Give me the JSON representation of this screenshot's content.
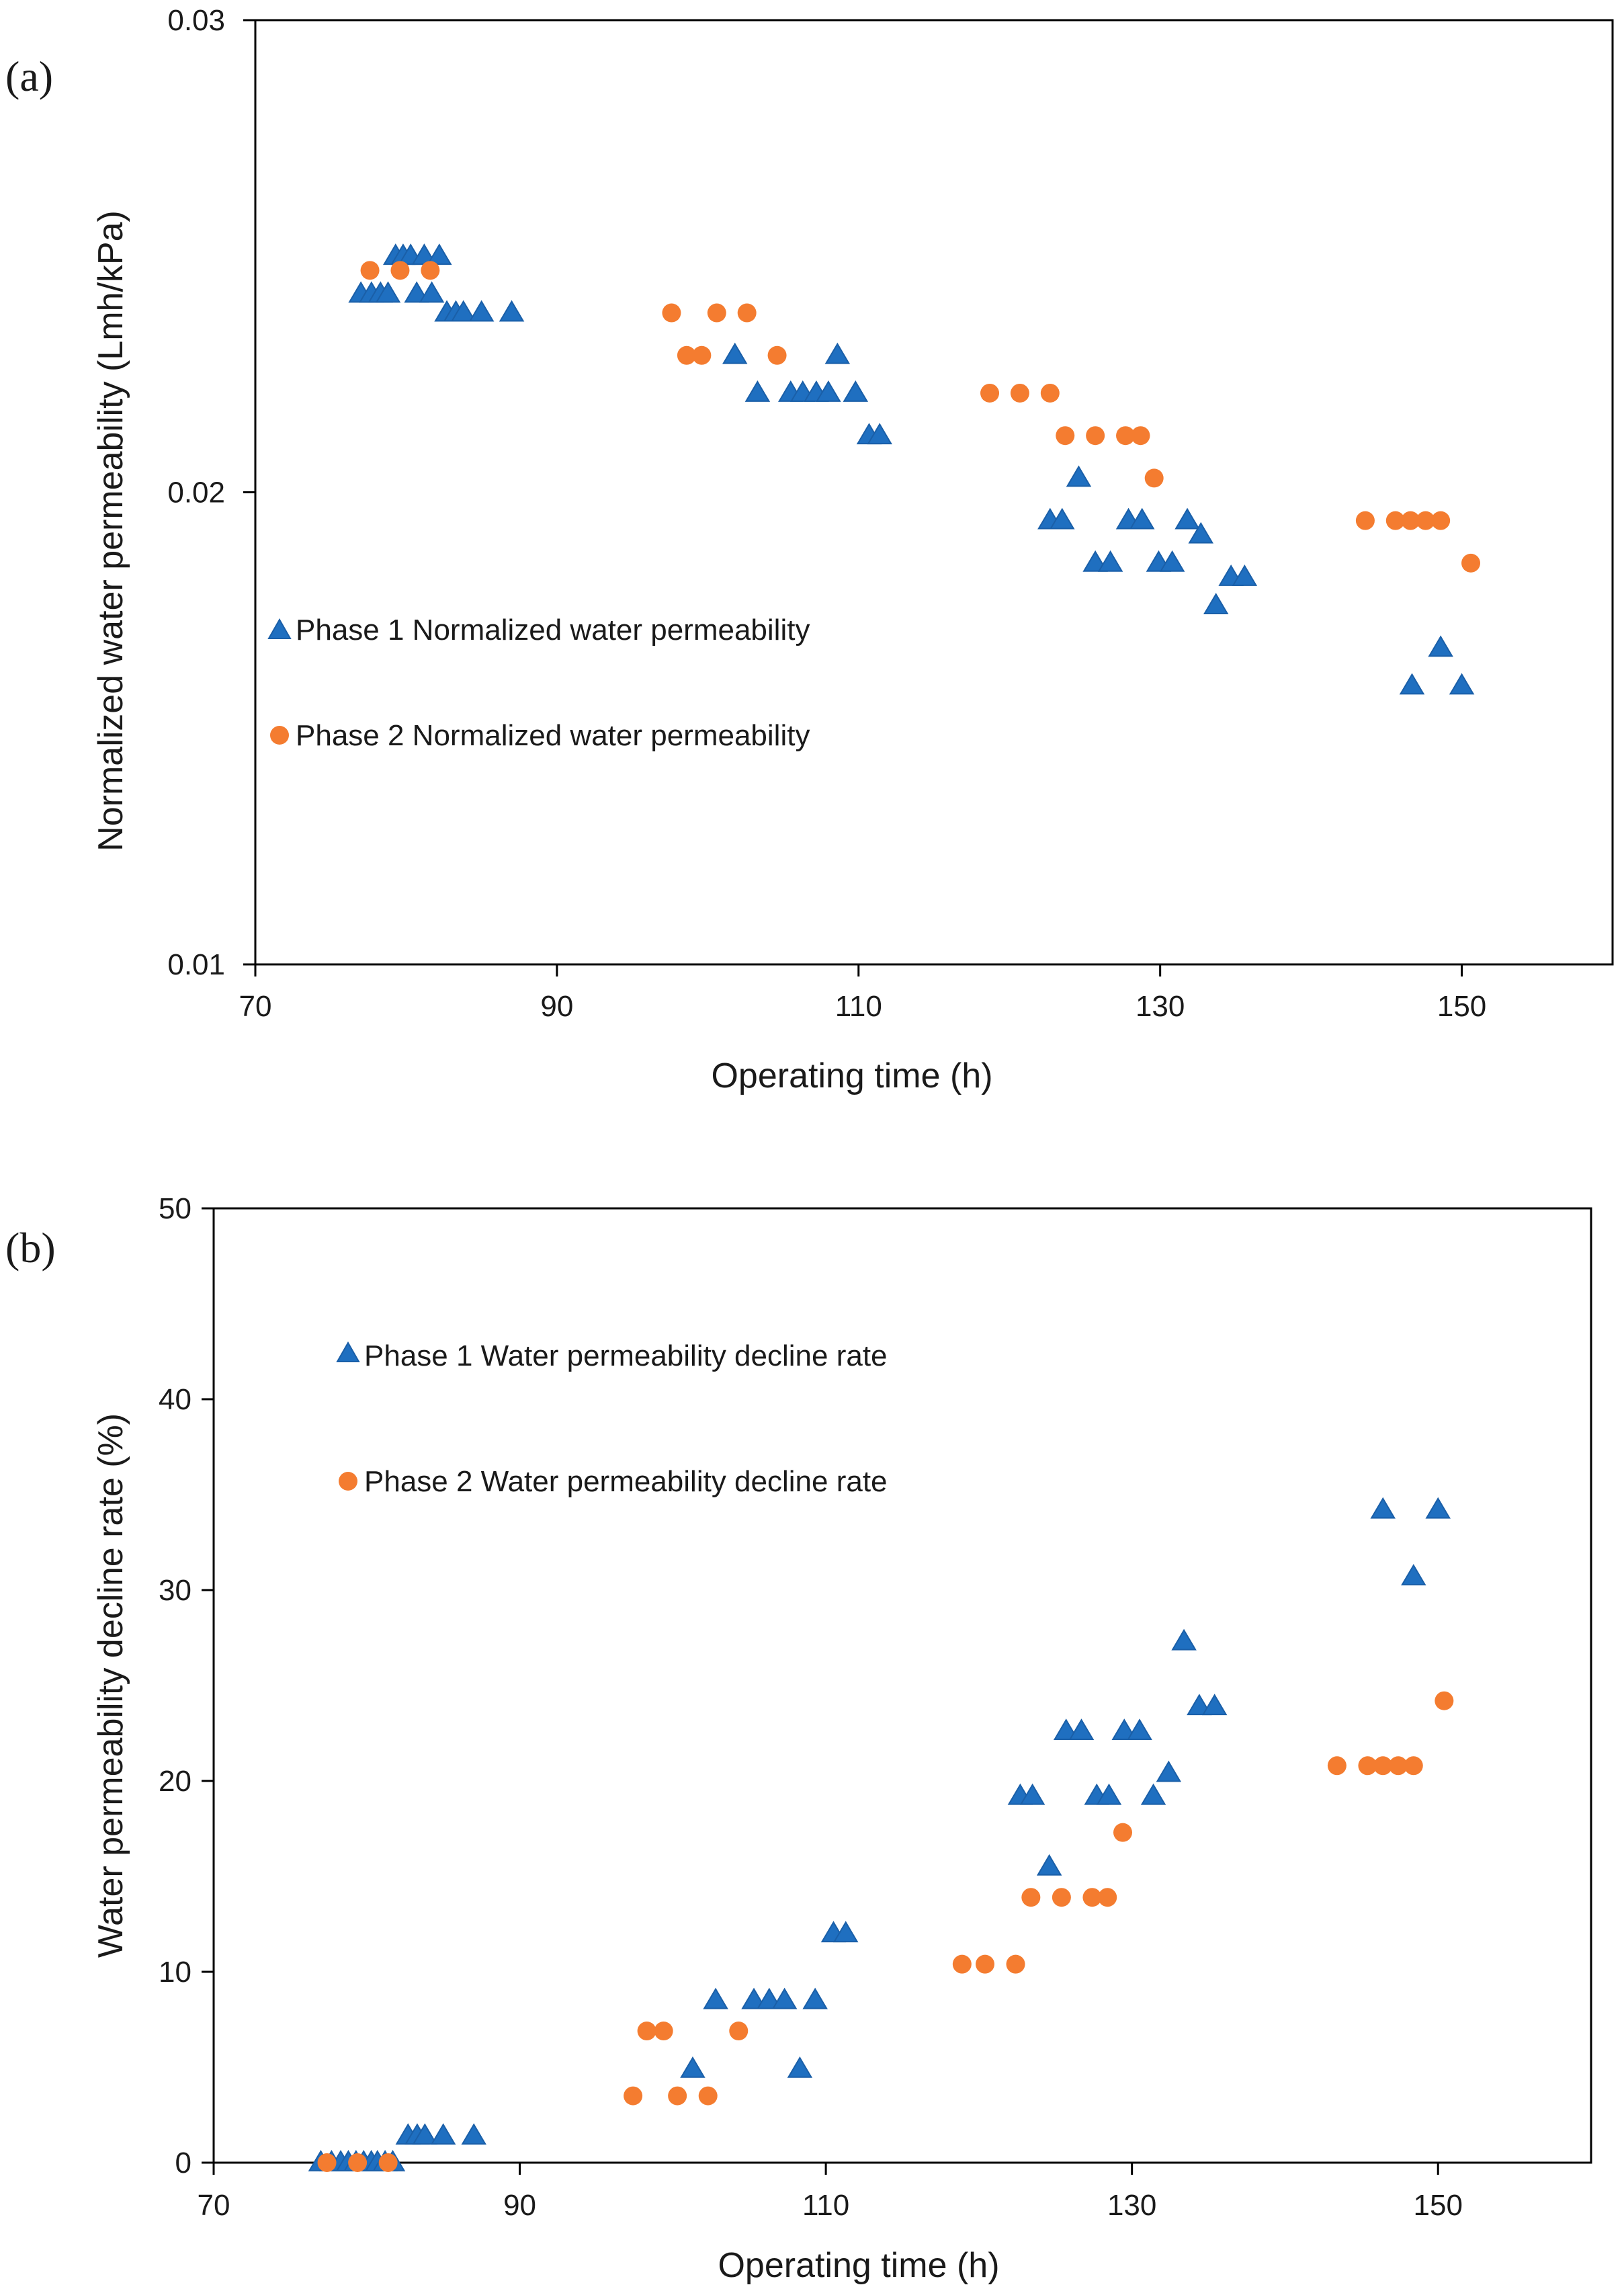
{
  "colors": {
    "phase1": "#1f6fc0",
    "phase1_stroke": "#1a5fa8",
    "phase2": "#f47c30",
    "axis": "#000000"
  },
  "chart_data": [
    {
      "type": "scatter",
      "panel_label": "(a)",
      "xlabel": "Operating time (h)",
      "ylabel": "Normalized water permeability  (Lmh/kPa)",
      "xlim": [
        70,
        160
      ],
      "ylim": [
        0.01,
        0.03
      ],
      "xticks": [
        70,
        90,
        110,
        130,
        150
      ],
      "xtick_labels": [
        "70",
        "90",
        "110",
        "130",
        "150"
      ],
      "yticks": [
        0.01,
        0.02,
        0.03
      ],
      "ytick_labels": [
        "0.01",
        "0.02",
        "0.03"
      ],
      "grid": false,
      "legend_position": "left-middle",
      "series": [
        {
          "name": "Phase 1 Normalized water permeability",
          "marker": "triangle",
          "points": [
            [
              77.0,
              0.0242
            ],
            [
              77.7,
              0.0242
            ],
            [
              78.3,
              0.0242
            ],
            [
              78.8,
              0.0242
            ],
            [
              79.3,
              0.025
            ],
            [
              79.8,
              0.025
            ],
            [
              80.3,
              0.025
            ],
            [
              80.7,
              0.0242
            ],
            [
              81.2,
              0.025
            ],
            [
              81.7,
              0.0242
            ],
            [
              82.2,
              0.025
            ],
            [
              82.7,
              0.0238
            ],
            [
              83.3,
              0.0238
            ],
            [
              83.8,
              0.0238
            ],
            [
              85.0,
              0.0238
            ],
            [
              87.0,
              0.0238
            ],
            [
              101.8,
              0.0229
            ],
            [
              103.3,
              0.0221
            ],
            [
              105.5,
              0.0221
            ],
            [
              106.3,
              0.0221
            ],
            [
              107.2,
              0.0221
            ],
            [
              108.0,
              0.0221
            ],
            [
              108.6,
              0.0229
            ],
            [
              109.8,
              0.0221
            ],
            [
              110.7,
              0.0212
            ],
            [
              111.4,
              0.0212
            ],
            [
              122.7,
              0.0194
            ],
            [
              123.5,
              0.0194
            ],
            [
              124.6,
              0.0203
            ],
            [
              125.7,
              0.0185
            ],
            [
              126.7,
              0.0185
            ],
            [
              127.9,
              0.0194
            ],
            [
              128.8,
              0.0194
            ],
            [
              129.9,
              0.0185
            ],
            [
              130.8,
              0.0185
            ],
            [
              131.8,
              0.0194
            ],
            [
              132.7,
              0.0191
            ],
            [
              133.7,
              0.0176
            ],
            [
              134.7,
              0.0182
            ],
            [
              135.6,
              0.0182
            ],
            [
              146.7,
              0.0159
            ],
            [
              148.6,
              0.0167
            ],
            [
              150.0,
              0.0159
            ]
          ]
        },
        {
          "name": "Phase 2 Normalized water permeability",
          "marker": "circle",
          "points": [
            [
              77.6,
              0.0247
            ],
            [
              79.6,
              0.0247
            ],
            [
              81.6,
              0.0247
            ],
            [
              97.6,
              0.0238
            ],
            [
              98.6,
              0.0229
            ],
            [
              99.6,
              0.0229
            ],
            [
              100.6,
              0.0238
            ],
            [
              102.6,
              0.0238
            ],
            [
              104.6,
              0.0229
            ],
            [
              118.7,
              0.0221
            ],
            [
              120.7,
              0.0221
            ],
            [
              122.7,
              0.0221
            ],
            [
              123.7,
              0.0212
            ],
            [
              125.7,
              0.0212
            ],
            [
              127.7,
              0.0212
            ],
            [
              128.7,
              0.0212
            ],
            [
              129.6,
              0.0203
            ],
            [
              143.6,
              0.0194
            ],
            [
              145.6,
              0.0194
            ],
            [
              146.6,
              0.0194
            ],
            [
              147.6,
              0.0194
            ],
            [
              148.6,
              0.0194
            ],
            [
              150.6,
              0.0185
            ]
          ]
        }
      ]
    },
    {
      "type": "scatter",
      "panel_label": "(b)",
      "xlabel": "Operating time (h)",
      "ylabel": "Water permeability decline rate (%)",
      "xlim": [
        70,
        160
      ],
      "ylim": [
        0,
        50
      ],
      "xticks": [
        70,
        90,
        110,
        130,
        150
      ],
      "xtick_labels": [
        "70",
        "90",
        "110",
        "130",
        "150"
      ],
      "yticks": [
        0,
        10,
        20,
        30,
        40,
        50
      ],
      "ytick_labels": [
        "0",
        "10",
        "20",
        "30",
        "40",
        "50"
      ],
      "grid": false,
      "legend_position": "top-left",
      "series": [
        {
          "name": "Phase 1 Water permeability decline rate",
          "marker": "triangle",
          "points": [
            [
              77.0,
              0
            ],
            [
              77.7,
              0
            ],
            [
              78.3,
              0
            ],
            [
              78.8,
              0
            ],
            [
              79.3,
              0
            ],
            [
              79.8,
              0
            ],
            [
              80.3,
              0
            ],
            [
              80.7,
              0
            ],
            [
              81.2,
              0
            ],
            [
              81.7,
              0
            ],
            [
              82.7,
              1.4
            ],
            [
              83.3,
              1.4
            ],
            [
              83.8,
              1.4
            ],
            [
              85.0,
              1.4
            ],
            [
              87.0,
              1.4
            ],
            [
              101.3,
              4.9
            ],
            [
              102.8,
              8.5
            ],
            [
              105.3,
              8.5
            ],
            [
              106.3,
              8.5
            ],
            [
              107.3,
              8.5
            ],
            [
              108.3,
              4.9
            ],
            [
              109.3,
              8.5
            ],
            [
              110.5,
              12.0
            ],
            [
              111.3,
              12.0
            ],
            [
              122.7,
              19.2
            ],
            [
              123.5,
              19.2
            ],
            [
              124.6,
              15.5
            ],
            [
              125.7,
              22.6
            ],
            [
              126.7,
              22.6
            ],
            [
              127.7,
              19.2
            ],
            [
              128.5,
              19.2
            ],
            [
              129.5,
              22.6
            ],
            [
              130.5,
              22.6
            ],
            [
              131.4,
              19.2
            ],
            [
              132.4,
              20.4
            ],
            [
              133.4,
              27.3
            ],
            [
              134.4,
              23.9
            ],
            [
              135.4,
              23.9
            ],
            [
              146.4,
              34.2
            ],
            [
              148.4,
              30.7
            ],
            [
              150.0,
              34.2
            ]
          ]
        },
        {
          "name": "Phase 2 Water permeability decline rate",
          "marker": "circle",
          "points": [
            [
              77.4,
              0
            ],
            [
              79.4,
              0
            ],
            [
              81.4,
              0
            ],
            [
              97.4,
              3.5
            ],
            [
              98.3,
              6.9
            ],
            [
              99.4,
              6.9
            ],
            [
              100.3,
              3.5
            ],
            [
              102.3,
              3.5
            ],
            [
              104.3,
              6.9
            ],
            [
              118.9,
              10.4
            ],
            [
              120.4,
              10.4
            ],
            [
              122.4,
              10.4
            ],
            [
              123.4,
              13.9
            ],
            [
              125.4,
              13.9
            ],
            [
              127.4,
              13.9
            ],
            [
              128.4,
              13.9
            ],
            [
              129.4,
              17.3
            ],
            [
              143.4,
              20.8
            ],
            [
              145.4,
              20.8
            ],
            [
              146.4,
              20.8
            ],
            [
              147.4,
              20.8
            ],
            [
              148.4,
              20.8
            ],
            [
              150.4,
              24.2
            ]
          ]
        }
      ]
    }
  ]
}
